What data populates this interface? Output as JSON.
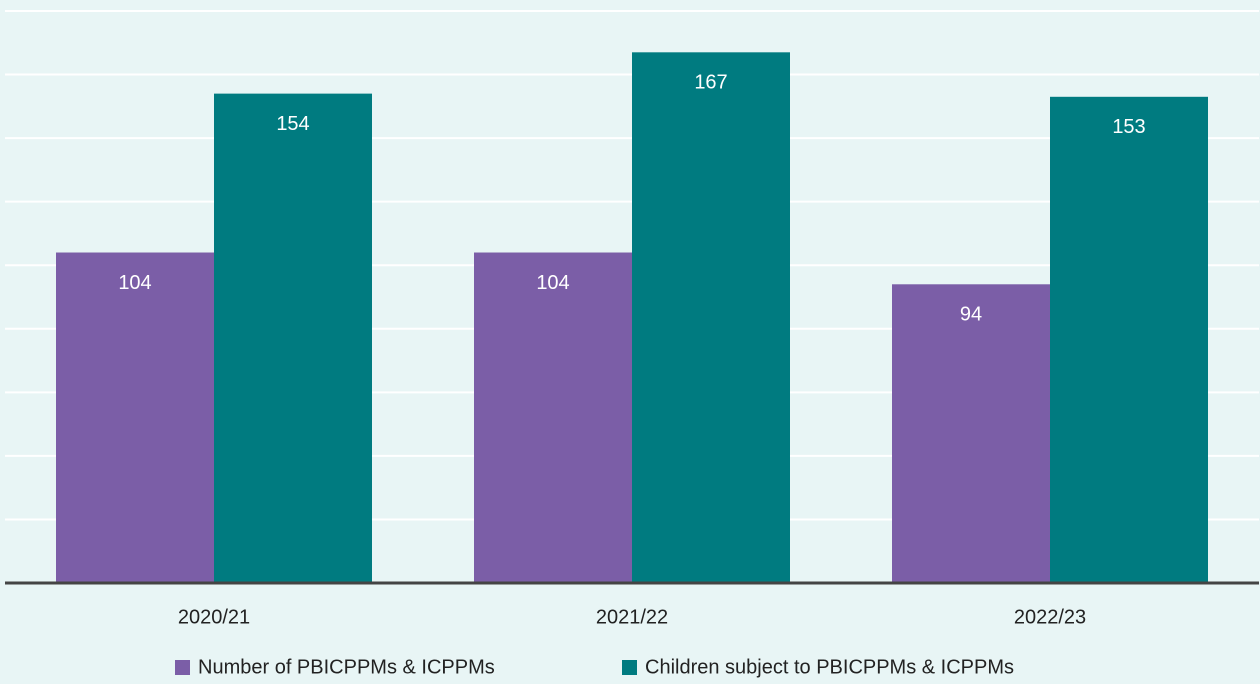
{
  "chart_data": {
    "type": "bar",
    "categories": [
      "2020/21",
      "2021/22",
      "2022/23"
    ],
    "series": [
      {
        "name": "Number of PBICPPMs & ICPPMs",
        "color": "#7b5ea7",
        "values": [
          104,
          104,
          94
        ]
      },
      {
        "name": "Children subject to PBICPPMs & ICPPMs",
        "color": "#007b80",
        "values": [
          154,
          167,
          153
        ]
      }
    ],
    "ylim": [
      0,
      180
    ],
    "yticks": [
      0,
      20,
      40,
      60,
      80,
      100,
      120,
      140,
      160,
      180
    ],
    "grid": true,
    "legend": "bottom"
  }
}
